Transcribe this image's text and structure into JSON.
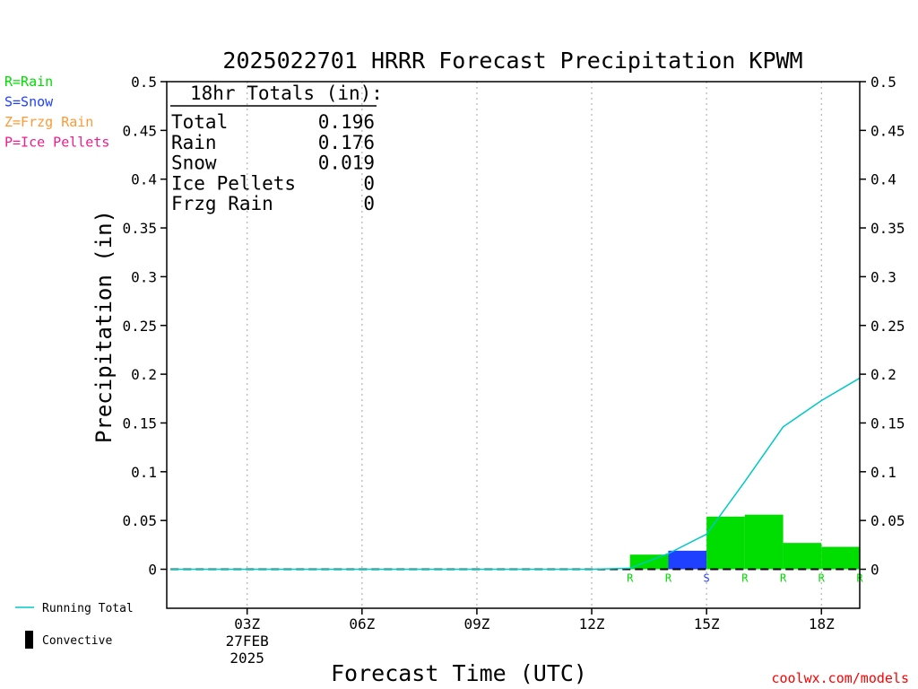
{
  "chart_data": {
    "type": "bar",
    "title": "2025022701 HRRR Forecast Precipitation KPWM",
    "ylabel": "Precipitation (in)",
    "xlabel": "Forecast Time (UTC)",
    "ylim": [
      -0.04,
      0.5
    ],
    "yticks": [
      "0.5",
      "0.45",
      "0.4",
      "0.35",
      "0.3",
      "0.25",
      "0.2",
      "0.15",
      "0.1",
      "0.05",
      "0"
    ],
    "ytick_values": [
      0.5,
      0.45,
      0.4,
      0.35,
      0.3,
      0.25,
      0.2,
      0.15,
      0.1,
      0.05,
      0
    ],
    "xlim": [
      0.9,
      19.0
    ],
    "xticks": [
      {
        "hour": 3,
        "label": "03Z",
        "sub1": "27FEB",
        "sub2": "2025"
      },
      {
        "hour": 6,
        "label": "06Z"
      },
      {
        "hour": 9,
        "label": "09Z"
      },
      {
        "hour": 12,
        "label": "12Z"
      },
      {
        "hour": 15,
        "label": "15Z"
      },
      {
        "hour": 18,
        "label": "18Z"
      }
    ],
    "grid": "vertical-dotted",
    "bars": [
      {
        "hour": 14,
        "value": 0.015,
        "type": "R"
      },
      {
        "hour": 15,
        "value": 0.019,
        "type": "S"
      },
      {
        "hour": 16,
        "value": 0.054,
        "type": "R"
      },
      {
        "hour": 17,
        "value": 0.056,
        "type": "R"
      },
      {
        "hour": 18,
        "value": 0.027,
        "type": "R"
      },
      {
        "hour": 19,
        "value": 0.023,
        "type": "R"
      }
    ],
    "ptype_markers": [
      {
        "hour": 13,
        "type": "R"
      },
      {
        "hour": 14,
        "type": "R"
      },
      {
        "hour": 15,
        "type": "S"
      },
      {
        "hour": 16,
        "type": "R"
      },
      {
        "hour": 17,
        "type": "R"
      },
      {
        "hour": 18,
        "type": "R"
      },
      {
        "hour": 19,
        "type": "R"
      }
    ],
    "running_total": {
      "name": "Running Total",
      "x": [
        1,
        2,
        3,
        4,
        5,
        6,
        7,
        8,
        9,
        10,
        11,
        12,
        13,
        14,
        15,
        16,
        17,
        18,
        19
      ],
      "y": [
        0,
        0,
        0,
        0,
        0,
        0,
        0,
        0,
        0,
        0,
        0,
        0,
        0.001,
        0.016,
        0.036,
        0.09,
        0.146,
        0.173,
        0.196
      ]
    },
    "colors": {
      "R": "#00dd00",
      "S": "#2040ff",
      "Z": "#ff9933",
      "P": "#ee1c8c",
      "running_total": "#00c8c8",
      "convective": "#000000"
    },
    "totals": {
      "header": "18hr Totals (in):",
      "rows": [
        {
          "label": "Total",
          "value": "0.196"
        },
        {
          "label": "Rain",
          "value": "0.176"
        },
        {
          "label": "Snow",
          "value": "0.019"
        },
        {
          "label": "Ice Pellets",
          "value": "0"
        },
        {
          "label": "Frzg Rain",
          "value": "0"
        }
      ]
    },
    "ptype_legend": [
      {
        "text": "R=Rain",
        "key": "R"
      },
      {
        "text": "S=Snow",
        "key": "S"
      },
      {
        "text": "Z=Frzg Rain",
        "key": "Z"
      },
      {
        "text": "P=Ice Pellets",
        "key": "P"
      }
    ],
    "line_legend": [
      {
        "text": "Running Total",
        "key": "running_total"
      },
      {
        "text": "Convective",
        "key": "convective"
      }
    ]
  },
  "credit": "coolwx.com/models"
}
